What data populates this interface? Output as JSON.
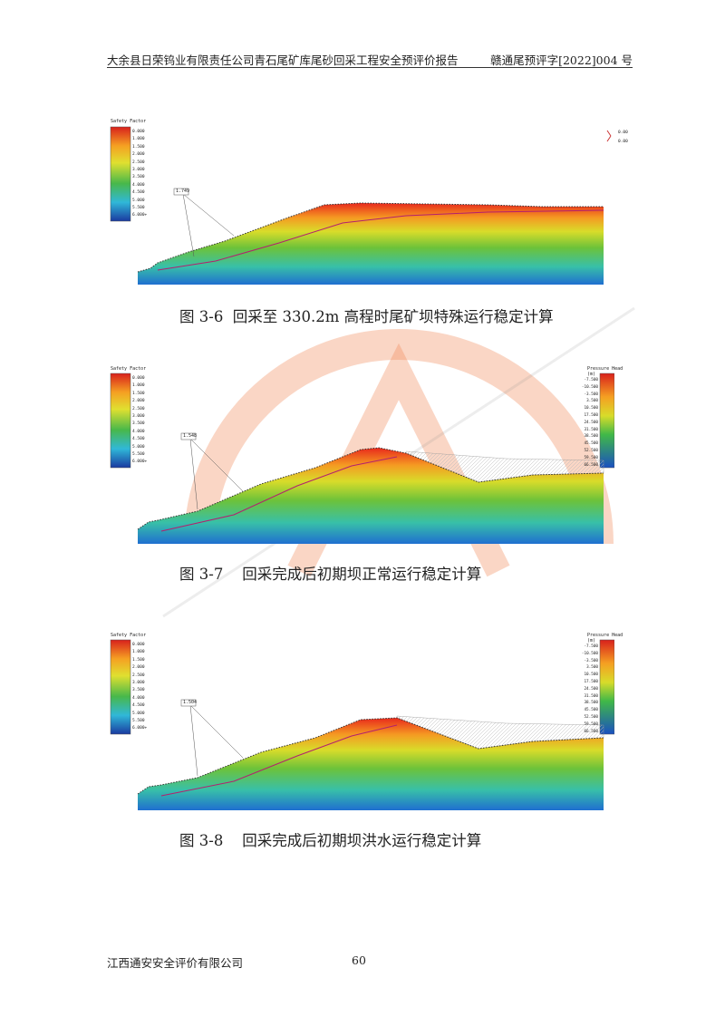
{
  "header": {
    "left_title": "大余县日荣钨业有限责任公司青石尾矿库尾砂回采工程安全预评价报告",
    "right_code": "赣通尾预评字[2022]004 号"
  },
  "figures": [
    {
      "caption": "图 3-6  回采至 330.2m 高程时尾矿坝特殊运行稳定计算",
      "legend_title": "Safety Factor",
      "legend_values": [
        "0.000",
        "1.000",
        "1.500",
        "2.000",
        "2.500",
        "3.000",
        "3.500",
        "4.000",
        "4.500",
        "5.000",
        "5.500",
        "6.000+"
      ],
      "callout": "1.749",
      "top_right_labels": [
        "0.00",
        "0.00"
      ]
    },
    {
      "caption": "图 3-7    回采完成后初期坝正常运行稳定计算",
      "legend_title": "Safety Factor",
      "legend_values": [
        "0.000",
        "1.000",
        "1.500",
        "2.000",
        "2.500",
        "3.000",
        "3.500",
        "4.000",
        "4.500",
        "5.000",
        "5.500",
        "6.000+"
      ],
      "callout": "1.548",
      "pressure_title": "Pressure Head",
      "pressure_unit": "(m)",
      "pressure_values": [
        "-7.500",
        "-10.500",
        "-3.500",
        "3.500",
        "10.500",
        "17.500",
        "24.500",
        "31.500",
        "38.500",
        "45.500",
        "52.500",
        "59.500",
        "66.500"
      ]
    },
    {
      "caption": "图 3-8    回采完成后初期坝洪水运行稳定计算",
      "legend_title": "Safety Factor",
      "legend_values": [
        "0.000",
        "1.000",
        "1.500",
        "2.000",
        "2.500",
        "3.000",
        "3.500",
        "4.000",
        "4.500",
        "5.000",
        "5.500",
        "6.000+"
      ],
      "callout": "1.504",
      "pressure_title": "Pressure Head",
      "pressure_unit": "(m)",
      "pressure_values": [
        "-7.500",
        "-10.500",
        "-3.500",
        "3.500",
        "10.500",
        "17.500",
        "24.500",
        "31.500",
        "38.500",
        "45.500",
        "52.500",
        "59.500",
        "66.500"
      ]
    }
  ],
  "footer": {
    "company": "江西通安安全评价有限公司",
    "page_number": "60"
  },
  "colors": {
    "watermark": "#f08a5a",
    "profile_red": "#e8281c",
    "profile_green": "#6cc23a",
    "profile_blue": "#1f6fd0"
  }
}
